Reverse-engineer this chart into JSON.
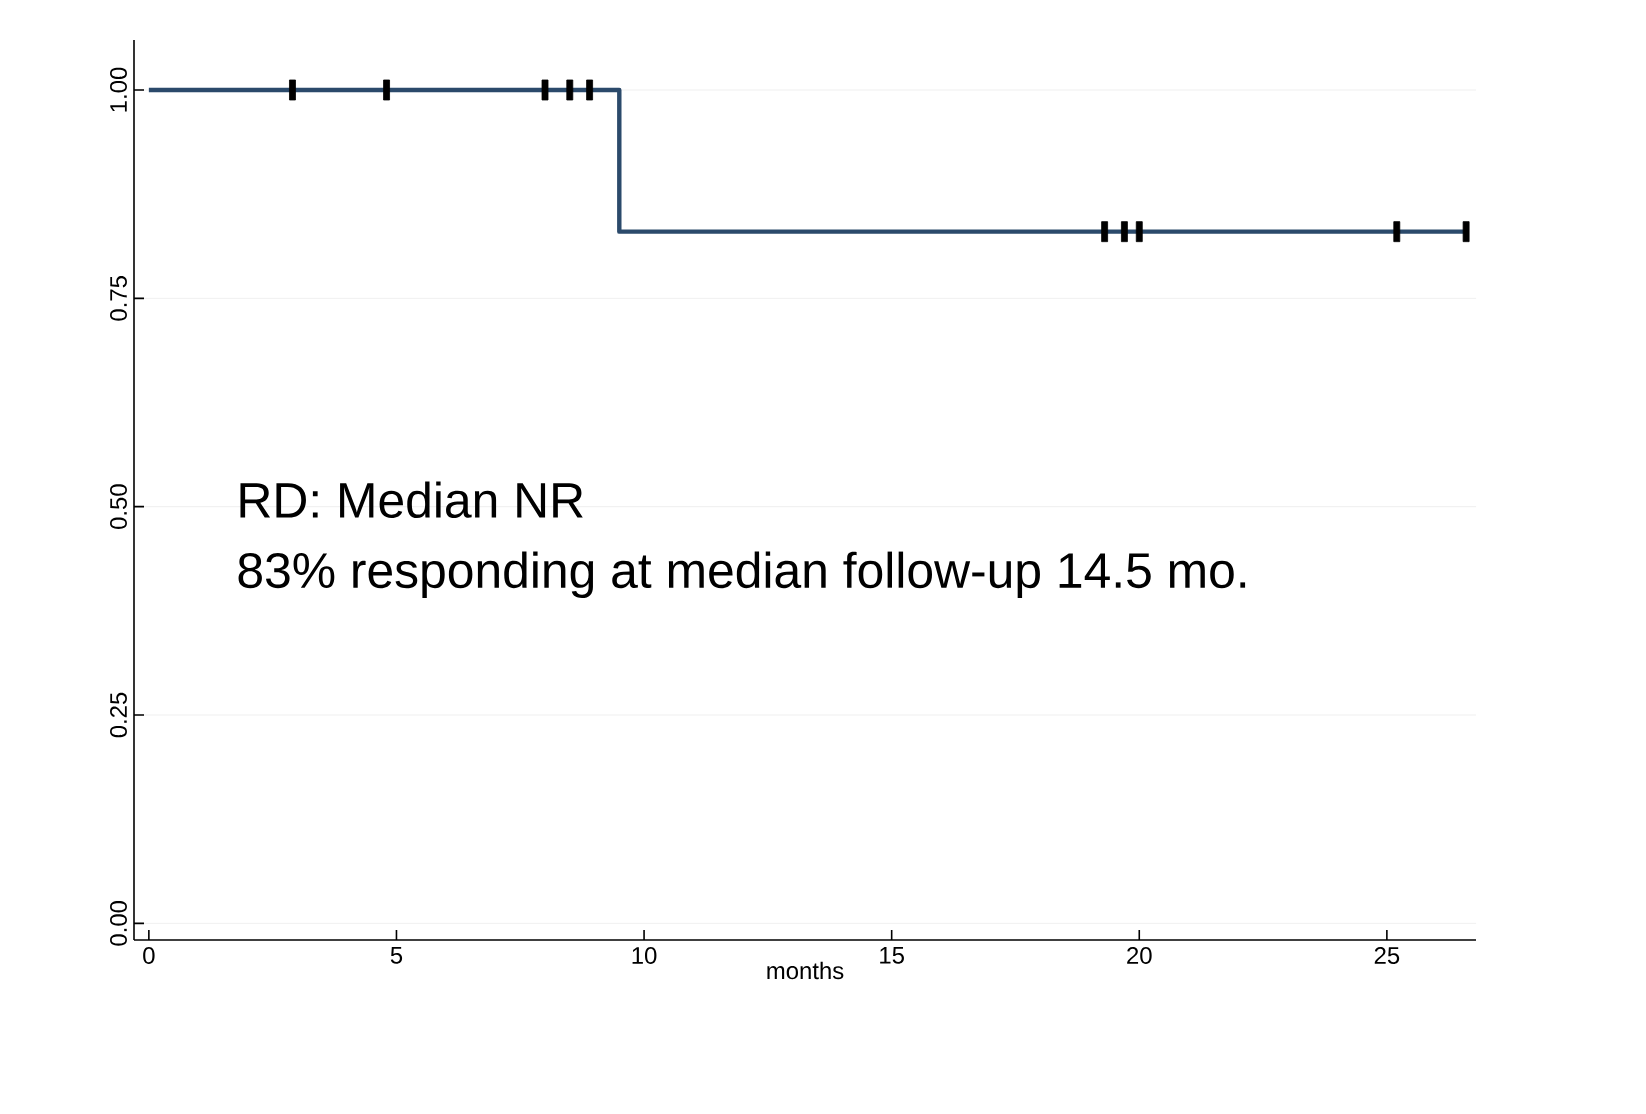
{
  "chart_data": {
    "type": "step",
    "xlabel": "months",
    "series": [
      {
        "color": "#2b4a6b",
        "x": [
          0,
          9.5,
          26.6
        ],
        "values": [
          1,
          0.83,
          0.83
        ]
      },
      {
        "type": "scatter",
        "color": "#000000",
        "x": [
          2.9,
          4.8,
          8.0,
          8.5,
          8.9,
          19.3,
          19.7,
          20.0,
          25.2,
          26.6
        ],
        "values": [
          1,
          1,
          1,
          1,
          1,
          0.83,
          0.83,
          0.83,
          0.83,
          0.83
        ]
      }
    ],
    "xlim": [
      -0.3,
      26.8
    ],
    "ylim": [
      -0.02,
      1.06
    ],
    "xticks": [
      0,
      5,
      10,
      15,
      20,
      25
    ],
    "yticks": [
      {
        "value": 0,
        "label": "0.00"
      },
      {
        "value": 0.25,
        "label": "0.25"
      },
      {
        "value": 0.5,
        "label": "0.50"
      },
      {
        "value": 0.75,
        "label": "0.75"
      },
      {
        "value": 1,
        "label": "1.00"
      }
    ],
    "grid": "y",
    "annotations": [
      "RD: Median NR",
      "83% responding at median follow-up 14.5 mo."
    ]
  }
}
